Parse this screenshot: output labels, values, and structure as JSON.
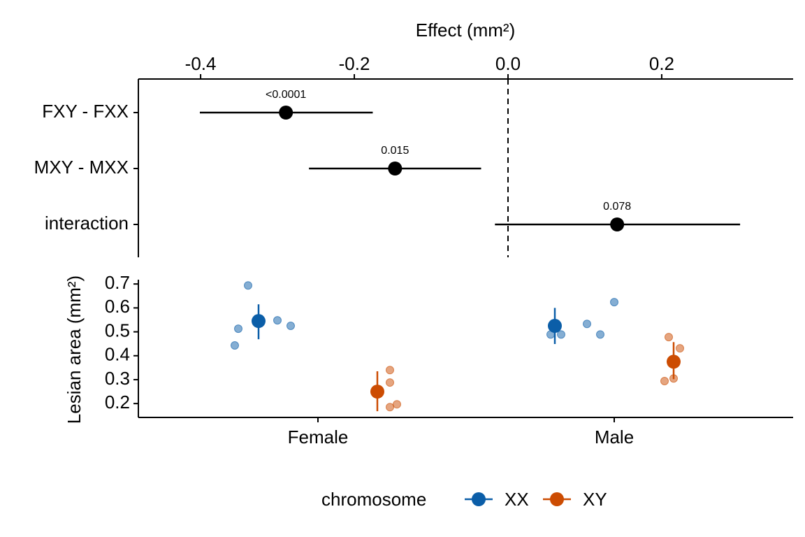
{
  "chart_data": [
    {
      "type": "forest",
      "x_label": "Effect (mm²)",
      "categories": [
        "FXY - FXX",
        "MXY - MXX",
        "interaction"
      ],
      "values": [
        -0.289,
        -0.147,
        0.142
      ],
      "lower": [
        -0.401,
        -0.259,
        -0.017
      ],
      "upper": [
        -0.176,
        -0.035,
        0.302
      ],
      "annotations": [
        "<0.0001",
        "0.015",
        "0.078"
      ],
      "color": "#000000",
      "ref_line": 0,
      "xlim": [
        -0.481,
        0.371
      ],
      "xticks": [
        -0.4,
        -0.2,
        {
          "value": 0,
          "label": "0.0"
        },
        0.2
      ]
    },
    {
      "type": "pointrange",
      "y_label": "Lesian area (mm²)",
      "categories": [
        "Female",
        "Male"
      ],
      "legend_title": "chromosome",
      "legend_position": "bottom",
      "series": [
        {
          "name": "XX",
          "color": "#0b5ea8",
          "values": [
            0.545,
            0.525
          ],
          "lower": [
            0.469,
            0.449
          ],
          "upper": [
            0.615,
            0.6
          ],
          "points": [
            [
              0.694,
              0.513,
              0.548,
              0.525,
              0.443
            ],
            [
              0.489,
              0.489,
              0.533,
              0.624,
              0.489
            ]
          ]
        },
        {
          "name": "XY",
          "color": "#cc4c02",
          "values": [
            0.25,
            0.375
          ],
          "lower": [
            0.168,
            0.302
          ],
          "upper": [
            0.335,
            0.457
          ],
          "points": [
            [
              0.34,
              0.288,
              0.185,
              0.197
            ],
            [
              0.478,
              0.431,
              0.294,
              0.305
            ]
          ]
        }
      ],
      "ylim": [
        0.142,
        0.718
      ],
      "yticks": [
        0.2,
        0.3,
        0.4,
        0.5,
        0.6,
        0.7
      ]
    }
  ]
}
